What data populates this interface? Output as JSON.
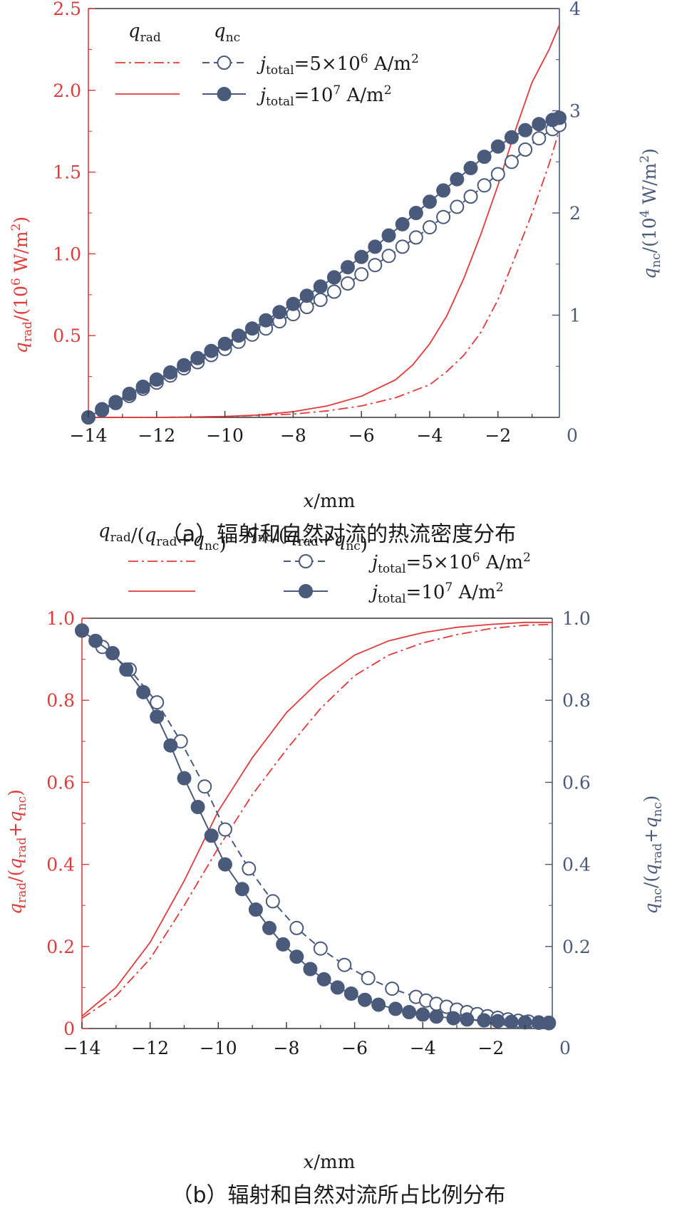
{
  "colors": {
    "rad": "#e03a3a",
    "nc": "#4a5a7a",
    "axis": "#4a5a7a",
    "text": "#1a1a1a"
  },
  "chart_data": [
    {
      "type": "line",
      "panel": "a",
      "caption": "（a）辐射和自然对流的热流密度分布",
      "xlabel": "x/mm",
      "ylabel_left": "q_rad/(10^6 W/m^2)",
      "ylabel_right": "q_nc/(10^4 W/m^2)",
      "xlim": [
        -14,
        -0.2
      ],
      "ylim_left": [
        0,
        2.5
      ],
      "ylim_right": [
        0,
        4
      ],
      "x_ticks": [
        "−14",
        "−12",
        "−10",
        "−8",
        "−6",
        "−4",
        "−2",
        "0"
      ],
      "y_left_ticks": [
        "2.5",
        "2.0",
        "1.5",
        "1.0",
        "0.5"
      ],
      "y_right_ticks": [
        "4",
        "3",
        "2",
        "1",
        "0"
      ],
      "legend_headers": {
        "rad": "q_rad",
        "nc": "q_nc"
      },
      "legend_entries": [
        "j_total=5×10^6 A/m^2",
        "j_total=10^7 A/m^2"
      ],
      "series": [
        {
          "name": "j_total=5×10^6 A/m^2",
          "quantity": "q_rad",
          "axis": "left",
          "style": "dashdot",
          "x": [
            -14,
            -12,
            -10,
            -8,
            -7,
            -6,
            -5,
            -4,
            -3.5,
            -3,
            -2.5,
            -2,
            -1.5,
            -1,
            -0.5,
            -0.2
          ],
          "y": [
            0,
            0,
            0.005,
            0.02,
            0.04,
            0.07,
            0.12,
            0.2,
            0.28,
            0.38,
            0.52,
            0.72,
            0.98,
            1.25,
            1.55,
            1.76
          ]
        },
        {
          "name": "j_total=10^7 A/m^2",
          "quantity": "q_rad",
          "axis": "left",
          "style": "solid",
          "x": [
            -14,
            -12,
            -11,
            -10,
            -9,
            -8,
            -7,
            -6,
            -5,
            -4.5,
            -4,
            -3.5,
            -3,
            -2.5,
            -2,
            -1.5,
            -1,
            -0.5,
            -0.2
          ],
          "y": [
            0,
            0,
            0.002,
            0.006,
            0.015,
            0.035,
            0.07,
            0.13,
            0.23,
            0.32,
            0.45,
            0.62,
            0.85,
            1.12,
            1.42,
            1.75,
            2.05,
            2.25,
            2.4
          ]
        },
        {
          "name": "j_total=5×10^6 A/m^2",
          "quantity": "q_nc",
          "axis": "right",
          "style": "dashed-open",
          "x": [
            -14,
            -13.6,
            -13.2,
            -12.8,
            -12.4,
            -12,
            -11.6,
            -11.2,
            -10.8,
            -10.4,
            -10,
            -9.6,
            -9.2,
            -8.8,
            -8.4,
            -8,
            -7.6,
            -7.2,
            -6.8,
            -6.4,
            -6,
            -5.6,
            -5.2,
            -4.8,
            -4.4,
            -4,
            -3.6,
            -3.2,
            -2.8,
            -2.4,
            -2,
            -1.6,
            -1.2,
            -0.8,
            -0.4,
            -0.2
          ],
          "y": [
            0,
            0.07,
            0.14,
            0.21,
            0.28,
            0.34,
            0.41,
            0.48,
            0.54,
            0.61,
            0.67,
            0.74,
            0.81,
            0.87,
            0.94,
            1.01,
            1.08,
            1.15,
            1.23,
            1.31,
            1.4,
            1.49,
            1.58,
            1.67,
            1.76,
            1.86,
            1.96,
            2.06,
            2.16,
            2.27,
            2.38,
            2.5,
            2.62,
            2.73,
            2.82,
            2.86
          ]
        },
        {
          "name": "j_total=10^7 A/m^2",
          "quantity": "q_nc",
          "axis": "right",
          "style": "solid-filled",
          "x": [
            -14,
            -13.6,
            -13.2,
            -12.8,
            -12.4,
            -12,
            -11.6,
            -11.2,
            -10.8,
            -10.4,
            -10,
            -9.6,
            -9.2,
            -8.8,
            -8.4,
            -8,
            -7.6,
            -7.2,
            -6.8,
            -6.4,
            -6,
            -5.6,
            -5.2,
            -4.8,
            -4.4,
            -4,
            -3.6,
            -3.2,
            -2.8,
            -2.4,
            -2,
            -1.6,
            -1.2,
            -0.8,
            -0.4,
            -0.2
          ],
          "y": [
            0,
            0.08,
            0.15,
            0.23,
            0.3,
            0.37,
            0.44,
            0.51,
            0.58,
            0.65,
            0.72,
            0.8,
            0.87,
            0.95,
            1.03,
            1.11,
            1.19,
            1.28,
            1.37,
            1.47,
            1.57,
            1.67,
            1.78,
            1.89,
            2.0,
            2.11,
            2.22,
            2.33,
            2.44,
            2.55,
            2.65,
            2.74,
            2.81,
            2.87,
            2.91,
            2.93
          ]
        }
      ]
    },
    {
      "type": "line",
      "panel": "b",
      "caption": "（b）辐射和自然对流所占比例分布",
      "xlabel": "x/mm",
      "ylabel_left": "q_rad/(q_rad+q_nc)",
      "ylabel_right": "q_nc/(q_rad+q_nc)",
      "xlim": [
        -14,
        -0.2
      ],
      "ylim_left": [
        0,
        1.0
      ],
      "ylim_right": [
        0,
        1.0
      ],
      "x_ticks": [
        "−14",
        "−12",
        "−10",
        "−8",
        "−6",
        "−4",
        "−2",
        "0"
      ],
      "y_left_ticks": [
        "1.0",
        "0.8",
        "0.6",
        "0.4",
        "0.2",
        "0"
      ],
      "y_right_ticks": [
        "1.0",
        "0.8",
        "0.6",
        "0.4",
        "0.2",
        "0"
      ],
      "legend_headers": {
        "rad": "q_rad/(q_rad+q_nc)",
        "nc": "q_nc/(q_rad+q_nc)"
      },
      "legend_entries": [
        "j_total=5×10^6 A/m^2",
        "j_total=10^7 A/m^2"
      ],
      "series": [
        {
          "name": "j_total=5×10^6 A/m^2",
          "quantity": "q_rad/(q_rad+q_nc)",
          "axis": "left",
          "style": "dashdot",
          "x": [
            -14,
            -13,
            -12,
            -11,
            -10,
            -9,
            -8,
            -7,
            -6,
            -5,
            -4,
            -3,
            -2,
            -1,
            -0.2
          ],
          "y": [
            0.025,
            0.08,
            0.17,
            0.3,
            0.44,
            0.57,
            0.68,
            0.78,
            0.86,
            0.91,
            0.94,
            0.96,
            0.975,
            0.983,
            0.985
          ]
        },
        {
          "name": "j_total=10^7 A/m^2",
          "quantity": "q_rad/(q_rad+q_nc)",
          "axis": "left",
          "style": "solid",
          "x": [
            -14,
            -13,
            -12,
            -11,
            -10,
            -9,
            -8,
            -7,
            -6,
            -5,
            -4,
            -3,
            -2,
            -1,
            -0.2
          ],
          "y": [
            0.03,
            0.1,
            0.21,
            0.36,
            0.53,
            0.66,
            0.77,
            0.85,
            0.91,
            0.945,
            0.965,
            0.978,
            0.985,
            0.99,
            0.99
          ]
        },
        {
          "name": "j_total=5×10^6 A/m^2",
          "quantity": "q_nc/(q_rad+q_nc)",
          "axis": "right",
          "style": "dashed-open",
          "x": [
            -14,
            -13.4,
            -12.6,
            -11.8,
            -11.1,
            -10.4,
            -9.8,
            -9.1,
            -8.4,
            -7.7,
            -7.0,
            -6.3,
            -5.6,
            -4.9,
            -4.2,
            -3.9,
            -3.6,
            -3.3,
            -3.0,
            -2.7,
            -2.4,
            -2.1,
            -1.8,
            -1.5,
            -1.2,
            -0.9,
            -0.6,
            -0.3
          ],
          "y": [
            0.97,
            0.93,
            0.875,
            0.795,
            0.7,
            0.59,
            0.485,
            0.39,
            0.31,
            0.245,
            0.195,
            0.155,
            0.123,
            0.097,
            0.077,
            0.068,
            0.06,
            0.053,
            0.046,
            0.04,
            0.035,
            0.03,
            0.026,
            0.022,
            0.019,
            0.017,
            0.015,
            0.014
          ]
        },
        {
          "name": "j_total=10^7 A/m^2",
          "quantity": "q_nc/(q_rad+q_nc)",
          "axis": "right",
          "style": "solid-filled",
          "x": [
            -14,
            -13.6,
            -13.1,
            -12.7,
            -12.2,
            -11.8,
            -11.4,
            -11.0,
            -10.6,
            -10.2,
            -9.8,
            -9.3,
            -8.9,
            -8.5,
            -8.1,
            -7.7,
            -7.3,
            -6.9,
            -6.5,
            -6.1,
            -5.7,
            -5.3,
            -4.8,
            -4.4,
            -4.0,
            -3.6,
            -3.1,
            -2.7,
            -2.2,
            -1.8,
            -1.4,
            -1.0,
            -0.6,
            -0.3
          ],
          "y": [
            0.97,
            0.945,
            0.915,
            0.875,
            0.82,
            0.76,
            0.69,
            0.61,
            0.54,
            0.47,
            0.4,
            0.34,
            0.29,
            0.245,
            0.205,
            0.175,
            0.145,
            0.12,
            0.1,
            0.085,
            0.07,
            0.058,
            0.048,
            0.04,
            0.034,
            0.029,
            0.025,
            0.022,
            0.02,
            0.018,
            0.016,
            0.015,
            0.014,
            0.013
          ]
        }
      ]
    }
  ]
}
